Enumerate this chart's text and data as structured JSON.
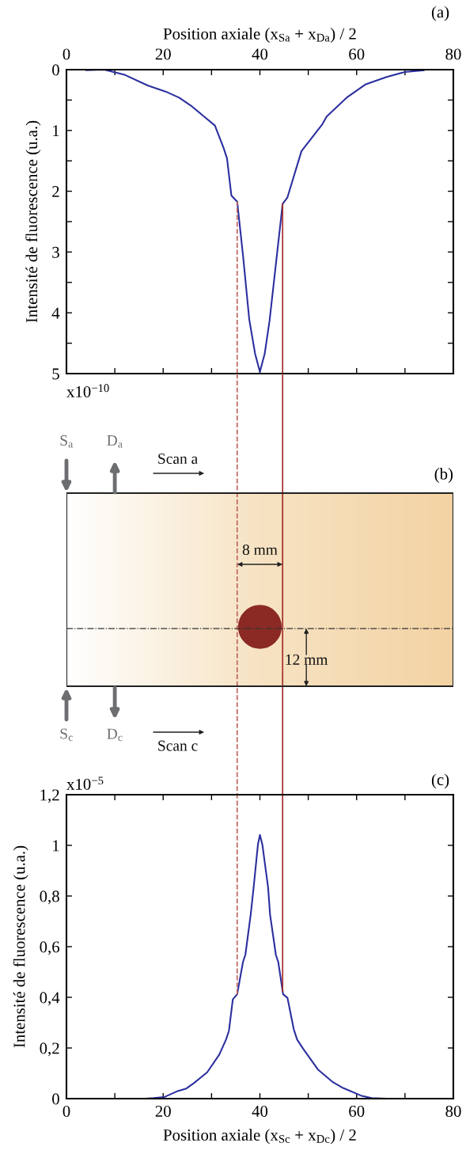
{
  "chart_data": [
    {
      "type": "line",
      "title": "(a)",
      "xlabel": "Position axiale (x$_{Sa}$ + x$_{Da}$) / 2",
      "ylabel": "Intensité de fluorescence (u.a.)",
      "annotations": [
        "x10$^{−10}$"
      ],
      "series": [
        {
          "color": "#2b2f9e",
          "x": [
            4.1,
            7.8,
            11.9,
            16.8,
            20.5,
            23.3,
            25.7,
            30.7,
            32.5,
            33.2,
            34.1,
            35.3,
            36.5,
            37.8,
            39.0,
            40.0,
            41.0,
            42.0,
            44.7,
            45.7,
            48.6,
            52.9,
            53.8,
            58.1,
            61.9,
            66.2,
            69.9,
            73.9
          ],
          "values": [
            0.01,
            0,
            0.08,
            0.26,
            0.36,
            0.46,
            0.59,
            0.92,
            1.29,
            1.46,
            2.07,
            2.17,
            3.05,
            4.11,
            4.67,
            4.97,
            4.67,
            4.13,
            2.21,
            2.1,
            1.34,
            0.9,
            0.77,
            0.45,
            0.24,
            0.12,
            0.04,
            0.01
          ]
        }
      ],
      "xlim": [
        0,
        80
      ],
      "xticks": [
        0,
        {
          "value": 10,
          "label": null
        },
        20,
        {
          "value": 30,
          "label": null
        },
        40,
        {
          "value": 50,
          "label": null
        },
        60,
        {
          "value": 70,
          "label": null
        },
        80
      ],
      "ylim": [
        5,
        0
      ],
      "yticks": [
        0,
        {
          "value": 0.5,
          "label": null
        },
        1,
        {
          "value": 1.5,
          "label": null
        },
        2,
        {
          "value": 2.5,
          "label": null
        },
        3,
        {
          "value": 3.5,
          "label": null
        },
        4,
        {
          "value": 4.5,
          "label": null
        },
        5
      ],
      "ref_lines": [
        {
          "axis": "x",
          "value": 35.3,
          "color": "#c0625c",
          "line_style": "dashed"
        },
        {
          "axis": "x",
          "value": 44.7,
          "color": "#a52a2a",
          "line_style": "solid"
        }
      ],
      "marker": "none",
      "line_style": "solid",
      "grid": false,
      "legend": false
    },
    {
      "type": "other",
      "title": "(b)",
      "annotations": [
        "S$_{a}$",
        "D$_{a}$",
        "Scan a",
        "S$_{c}$",
        "D$_{c}$",
        "Scan c",
        "8 mm",
        "12 mm"
      ]
    },
    {
      "type": "line",
      "title": "(c)",
      "xlabel": "Position axiale (x$_{Sc}$ + x$_{Dc}$) / 2",
      "ylabel": "Intensité de fluorescence (u.a.)",
      "annotations": [
        "x10$^{−5}$"
      ],
      "series": [
        {
          "color": "#2b2f9e",
          "x": [
            7.2,
            16.2,
            18,
            20.2,
            23,
            24.8,
            26.4,
            29.1,
            31.6,
            33,
            33.6,
            34.4,
            35.3,
            36.5,
            37,
            38.1,
            38.7,
            39.6,
            40.0,
            40.5,
            41.7,
            42.1,
            43.3,
            43.8,
            44.8,
            45.7,
            47.0,
            47.7,
            48.9,
            52.0,
            55.1,
            57.2,
            60.9,
            63.1,
            66.2,
            76.0
          ],
          "values": [
            0,
            0,
            0.002,
            0.006,
            0.03,
            0.04,
            0.062,
            0.104,
            0.174,
            0.233,
            0.268,
            0.392,
            0.412,
            0.539,
            0.568,
            0.727,
            0.833,
            1.004,
            1.041,
            1.004,
            0.833,
            0.727,
            0.568,
            0.539,
            0.412,
            0.398,
            0.274,
            0.233,
            0.198,
            0.115,
            0.065,
            0.042,
            0.012,
            0.002,
            0,
            0
          ]
        }
      ],
      "xlim": [
        0,
        80
      ],
      "xticks": [
        0,
        {
          "value": 10,
          "label": null
        },
        20,
        {
          "value": 30,
          "label": null
        },
        40,
        {
          "value": 50,
          "label": null
        },
        60,
        {
          "value": 70,
          "label": null
        },
        80
      ],
      "ylim": [
        0,
        1.2
      ],
      "yticks": [
        0,
        {
          "value": 0.2,
          "label": "0,2"
        },
        {
          "value": 0.4,
          "label": "0,4"
        },
        {
          "value": 0.6,
          "label": "0,6"
        },
        {
          "value": 0.8,
          "label": "0,8"
        },
        1,
        {
          "value": 1.2,
          "label": "1,2"
        }
      ],
      "ref_lines": [
        {
          "axis": "x",
          "value": 35.3,
          "color": "#c0625c",
          "line_style": "dashed"
        },
        {
          "axis": "x",
          "value": 44.7,
          "color": "#a52a2a",
          "line_style": "solid"
        }
      ],
      "marker": "none",
      "line_style": "solid",
      "grid": false,
      "legend": false
    }
  ]
}
